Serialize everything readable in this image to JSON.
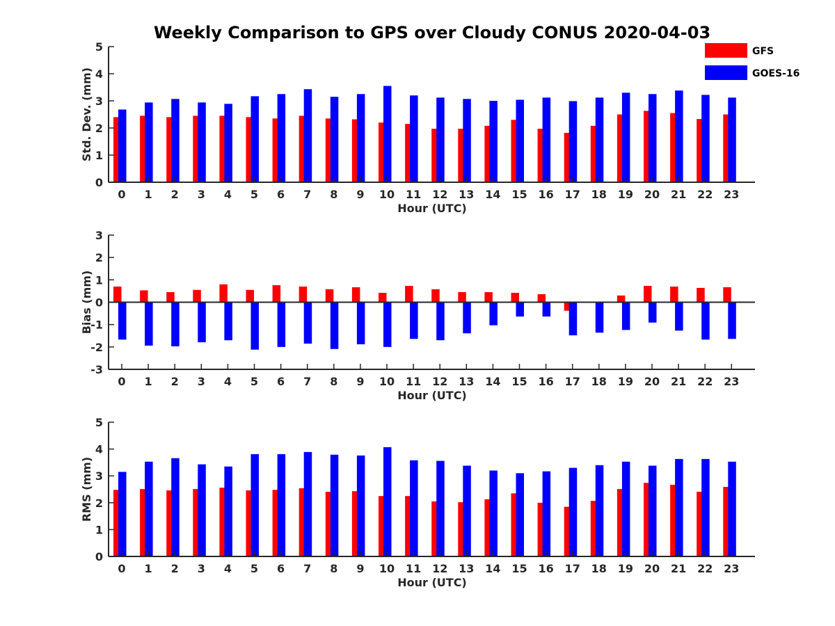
{
  "figure": {
    "title": "Weekly Comparison to GPS over Cloudy CONUS 2020-04-03"
  },
  "legend": {
    "placement": "top-right",
    "items": [
      {
        "label": "GFS",
        "color": "#ff0000"
      },
      {
        "label": "GOES-16",
        "color": "#0000ff"
      }
    ]
  },
  "chart_data": [
    {
      "type": "bar",
      "xlabel": "Hour (UTC)",
      "ylabel": "Std. Dev. (mm)",
      "ylim": [
        0,
        5
      ],
      "yticks": [
        0,
        1,
        2,
        3,
        4,
        5
      ],
      "categories": [
        "0",
        "1",
        "2",
        "3",
        "4",
        "5",
        "6",
        "7",
        "8",
        "9",
        "10",
        "11",
        "12",
        "13",
        "14",
        "15",
        "16",
        "17",
        "18",
        "19",
        "20",
        "21",
        "22",
        "23"
      ],
      "series": [
        {
          "name": "GFS",
          "color": "#ff0000",
          "values": [
            2.4,
            2.45,
            2.4,
            2.45,
            2.45,
            2.4,
            2.35,
            2.45,
            2.35,
            2.32,
            2.2,
            2.15,
            1.97,
            1.97,
            2.08,
            2.3,
            1.97,
            1.82,
            2.08,
            2.5,
            2.63,
            2.55,
            2.33,
            2.5
          ]
        },
        {
          "name": "GOES-16",
          "color": "#0000ff",
          "values": [
            2.68,
            2.94,
            3.07,
            2.94,
            2.89,
            3.17,
            3.25,
            3.43,
            3.15,
            3.25,
            3.55,
            3.2,
            3.12,
            3.07,
            3.0,
            3.04,
            3.12,
            2.99,
            3.12,
            3.3,
            3.25,
            3.38,
            3.22,
            3.12
          ]
        }
      ]
    },
    {
      "type": "bar",
      "xlabel": "Hour (UTC)",
      "ylabel": "Bias (mm)",
      "ylim": [
        -3,
        3
      ],
      "yticks": [
        -3,
        -2,
        -1,
        0,
        1,
        2,
        3
      ],
      "categories": [
        "0",
        "1",
        "2",
        "3",
        "4",
        "5",
        "6",
        "7",
        "8",
        "9",
        "10",
        "11",
        "12",
        "13",
        "14",
        "15",
        "16",
        "17",
        "18",
        "19",
        "20",
        "21",
        "22",
        "23"
      ],
      "series": [
        {
          "name": "GFS",
          "color": "#ff0000",
          "values": [
            0.7,
            0.53,
            0.45,
            0.55,
            0.8,
            0.55,
            0.76,
            0.7,
            0.58,
            0.67,
            0.42,
            0.73,
            0.58,
            0.45,
            0.45,
            0.42,
            0.36,
            -0.38,
            0.0,
            0.3,
            0.73,
            0.7,
            0.64,
            0.67
          ]
        },
        {
          "name": "GOES-16",
          "color": "#0000ff",
          "values": [
            -1.67,
            -1.94,
            -1.97,
            -1.79,
            -1.7,
            -2.12,
            -2.0,
            -1.85,
            -2.09,
            -1.88,
            -2.0,
            -1.64,
            -1.7,
            -1.39,
            -1.03,
            -0.64,
            -0.64,
            -1.48,
            -1.36,
            -1.24,
            -0.91,
            -1.27,
            -1.67,
            -1.64
          ]
        }
      ]
    },
    {
      "type": "bar",
      "xlabel": "Hour (UTC)",
      "ylabel": "RMS (mm)",
      "ylim": [
        0,
        5
      ],
      "yticks": [
        0,
        1,
        2,
        3,
        4,
        5
      ],
      "categories": [
        "0",
        "1",
        "2",
        "3",
        "4",
        "5",
        "6",
        "7",
        "8",
        "9",
        "10",
        "11",
        "12",
        "13",
        "14",
        "15",
        "16",
        "17",
        "18",
        "19",
        "20",
        "21",
        "22",
        "23"
      ],
      "series": [
        {
          "name": "GFS",
          "color": "#ff0000",
          "values": [
            2.48,
            2.51,
            2.46,
            2.51,
            2.56,
            2.46,
            2.48,
            2.54,
            2.41,
            2.43,
            2.25,
            2.25,
            2.05,
            2.02,
            2.13,
            2.35,
            2.0,
            1.85,
            2.07,
            2.51,
            2.74,
            2.67,
            2.41,
            2.59
          ]
        },
        {
          "name": "GOES-16",
          "color": "#0000ff",
          "values": [
            3.15,
            3.53,
            3.66,
            3.43,
            3.35,
            3.81,
            3.81,
            3.89,
            3.79,
            3.76,
            4.07,
            3.58,
            3.56,
            3.38,
            3.2,
            3.1,
            3.17,
            3.3,
            3.4,
            3.53,
            3.38,
            3.63,
            3.63,
            3.53
          ]
        }
      ]
    }
  ]
}
